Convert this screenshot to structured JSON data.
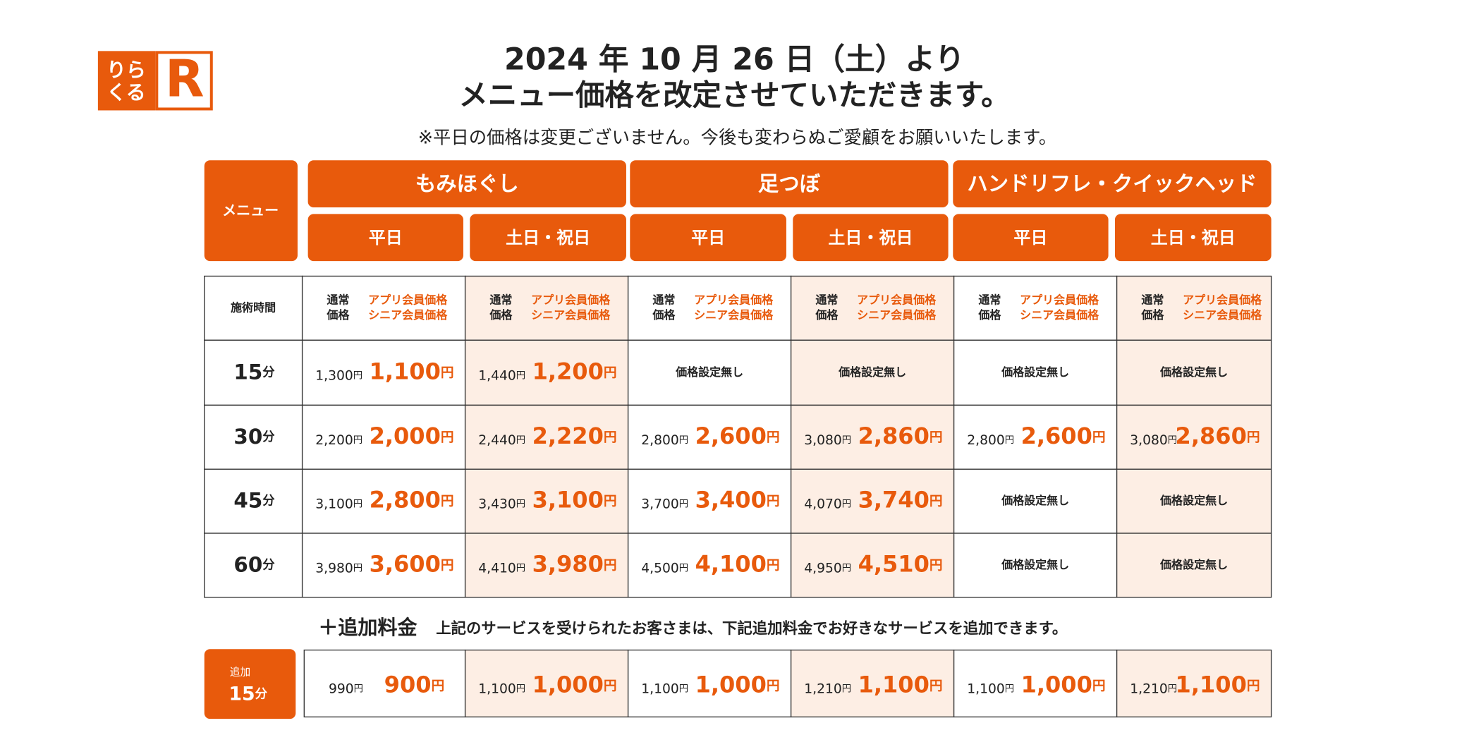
{
  "logo": {
    "line1": "りら",
    "line2": "くる",
    "mark": "R"
  },
  "header": {
    "title_line1": "2024 年 10 月 26 日（土）より",
    "title_line2": "メニュー価格を改定させていただきます。",
    "note": "※平日の価格は変更ございません。今後も変わらぬご愛顧をお願いいたします。"
  },
  "table": {
    "menu_label": "メニュー",
    "time_label": "施術時間",
    "regular_label": [
      "通常",
      "価格"
    ],
    "member_label": [
      "アプリ会員価格",
      "シニア会員価格"
    ],
    "yen": "円",
    "minute": "分",
    "groups": [
      {
        "name": "もみほぐし",
        "columns": [
          "平日",
          "土日・祝日"
        ]
      },
      {
        "name": "足つぼ",
        "columns": [
          "平日",
          "土日・祝日"
        ]
      },
      {
        "name": "ハンドリフレ・クイックヘッド",
        "columns": [
          "平日",
          "土日・祝日"
        ]
      }
    ],
    "rows": [
      {
        "time": "15",
        "cells": [
          {
            "regular": "1,300",
            "member": "1,100"
          },
          {
            "regular": "1,440",
            "member": "1,200"
          },
          {
            "note": "価格設定無し"
          },
          {
            "note": "価格設定無し"
          },
          {
            "note": "価格設定無し"
          },
          {
            "note": "価格設定無し"
          }
        ]
      },
      {
        "time": "30",
        "cells": [
          {
            "regular": "2,200",
            "member": "2,000"
          },
          {
            "regular": "2,440",
            "member": "2,220"
          },
          {
            "regular": "2,800",
            "member": "2,600"
          },
          {
            "regular": "3,080",
            "member": "2,860"
          },
          {
            "regular": "2,800",
            "member": "2,600"
          },
          {
            "regular": "3,080",
            "member": "2,860"
          }
        ]
      },
      {
        "time": "45",
        "cells": [
          {
            "regular": "3,100",
            "member": "2,800"
          },
          {
            "regular": "3,430",
            "member": "3,100"
          },
          {
            "regular": "3,700",
            "member": "3,400"
          },
          {
            "regular": "4,070",
            "member": "3,740"
          },
          {
            "note": "価格設定無し"
          },
          {
            "note": "価格設定無し"
          }
        ]
      },
      {
        "time": "60",
        "cells": [
          {
            "regular": "3,980",
            "member": "3,600"
          },
          {
            "regular": "4,410",
            "member": "3,980"
          },
          {
            "regular": "4,500",
            "member": "4,100"
          },
          {
            "regular": "4,950",
            "member": "4,510"
          },
          {
            "note": "価格設定無し"
          },
          {
            "note": "価格設定無し"
          }
        ]
      }
    ]
  },
  "addon": {
    "title": "＋追加料金",
    "description": "上記のサービスを受けられたお客さまは、下記追加料金でお好きなサービスを追加できます。",
    "label": "追加",
    "time": "15",
    "cells": [
      {
        "regular": "990",
        "member": "900"
      },
      {
        "regular": "1,100",
        "member": "1,000"
      },
      {
        "regular": "1,100",
        "member": "1,000"
      },
      {
        "regular": "1,210",
        "member": "1,100"
      },
      {
        "regular": "1,100",
        "member": "1,000"
      },
      {
        "regular": "1,210",
        "member": "1,100"
      }
    ]
  }
}
